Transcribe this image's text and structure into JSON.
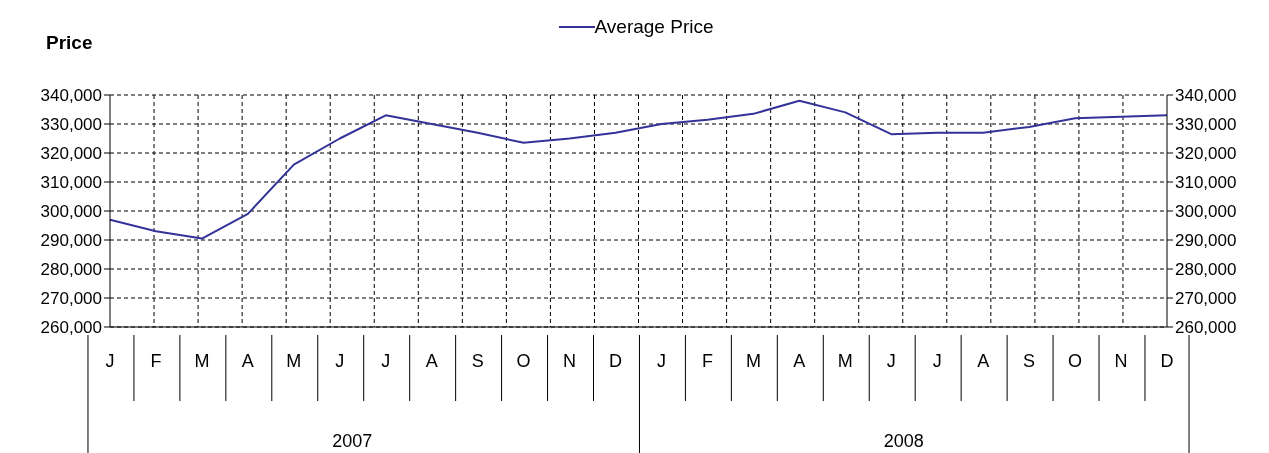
{
  "chart_data": {
    "type": "line",
    "ylabel": "Price",
    "categories": [
      "J",
      "F",
      "M",
      "A",
      "M",
      "J",
      "J",
      "A",
      "S",
      "O",
      "N",
      "D",
      "J",
      "F",
      "M",
      "A",
      "M",
      "J",
      "J",
      "A",
      "S",
      "O",
      "N",
      "D"
    ],
    "annotations": [
      "2007",
      "2008"
    ],
    "series": [
      {
        "name": "Average Price",
        "color": "#333399",
        "values": [
          297000,
          293000,
          290500,
          299000,
          316000,
          325000,
          333000,
          330000,
          327000,
          323500,
          325000,
          327000,
          330000,
          331500,
          333500,
          338000,
          334000,
          326500,
          327000,
          327000,
          329000,
          332000,
          332500,
          333000
        ]
      }
    ],
    "ylim": [
      260000,
      340000
    ],
    "yticks": [
      {
        "value": 260000,
        "label": "260,000"
      },
      {
        "value": 270000,
        "label": "270,000"
      },
      {
        "value": 280000,
        "label": "280,000"
      },
      {
        "value": 290000,
        "label": "290,000"
      },
      {
        "value": 300000,
        "label": "300,000"
      },
      {
        "value": 310000,
        "label": "310,000"
      },
      {
        "value": 320000,
        "label": "320,000"
      },
      {
        "value": 330000,
        "label": "330,000"
      },
      {
        "value": 340000,
        "label": "340,000"
      }
    ],
    "y2lim": [
      260000,
      340000
    ],
    "y2ticks": [
      {
        "value": 260000,
        "label": "260,000"
      },
      {
        "value": 270000,
        "label": "270,000"
      },
      {
        "value": 280000,
        "label": "280,000"
      },
      {
        "value": 290000,
        "label": "290,000"
      },
      {
        "value": 300000,
        "label": "300,000"
      },
      {
        "value": 310000,
        "label": "310,000"
      },
      {
        "value": 320000,
        "label": "320,000"
      },
      {
        "value": 330000,
        "label": "330,000"
      },
      {
        "value": 340000,
        "label": "340,000"
      }
    ],
    "grid": true,
    "legend": "top",
    "marker": "none",
    "line_style": "solid"
  }
}
